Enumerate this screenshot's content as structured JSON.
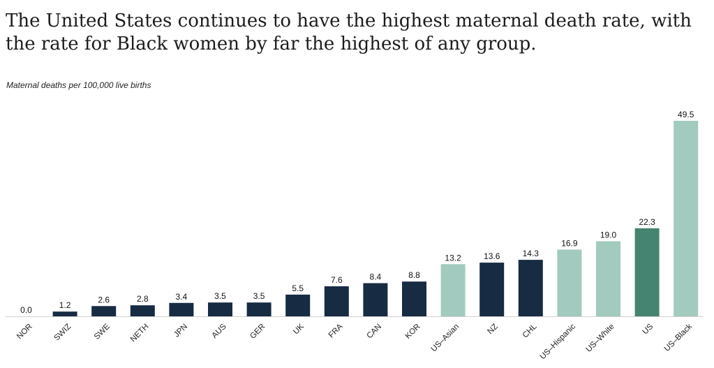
{
  "title": "The United States continues to have the highest maternal death rate, with the rate for Black women by far the highest of any group.",
  "subtitle": "Maternal deaths per 100,000 live births",
  "colors": {
    "default": "#172b42",
    "us_group": "#a2cabe",
    "us_total": "#458470",
    "baseline": "#cfcfcf"
  },
  "chart_data": {
    "type": "bar",
    "title": "",
    "xlabel": "",
    "ylabel": "Maternal deaths per 100,000 live births",
    "ylim": [
      0,
      52
    ],
    "grid": false,
    "categories": [
      "NOR",
      "SWIZ",
      "SWE",
      "NETH",
      "JPN",
      "AUS",
      "GER",
      "UK",
      "FRA",
      "CAN",
      "KOR",
      "US–Asian",
      "NZ",
      "CHL",
      "US–Hispanic",
      "US–White",
      "US",
      "US–Black"
    ],
    "values": [
      0.0,
      1.2,
      2.6,
      2.8,
      3.4,
      3.5,
      3.5,
      5.5,
      7.6,
      8.4,
      8.8,
      13.2,
      13.6,
      14.3,
      16.9,
      19.0,
      22.3,
      49.5
    ],
    "value_labels": [
      "0.0",
      "1.2",
      "2.6",
      "2.8",
      "3.4",
      "3.5",
      "3.5",
      "5.5",
      "7.6",
      "8.4",
      "8.8",
      "13.2",
      "13.6",
      "14.3",
      "16.9",
      "19.0",
      "22.3",
      "49.5"
    ],
    "color_keys": [
      "default",
      "default",
      "default",
      "default",
      "default",
      "default",
      "default",
      "default",
      "default",
      "default",
      "default",
      "us_group",
      "default",
      "default",
      "us_group",
      "us_group",
      "us_total",
      "us_group"
    ]
  }
}
